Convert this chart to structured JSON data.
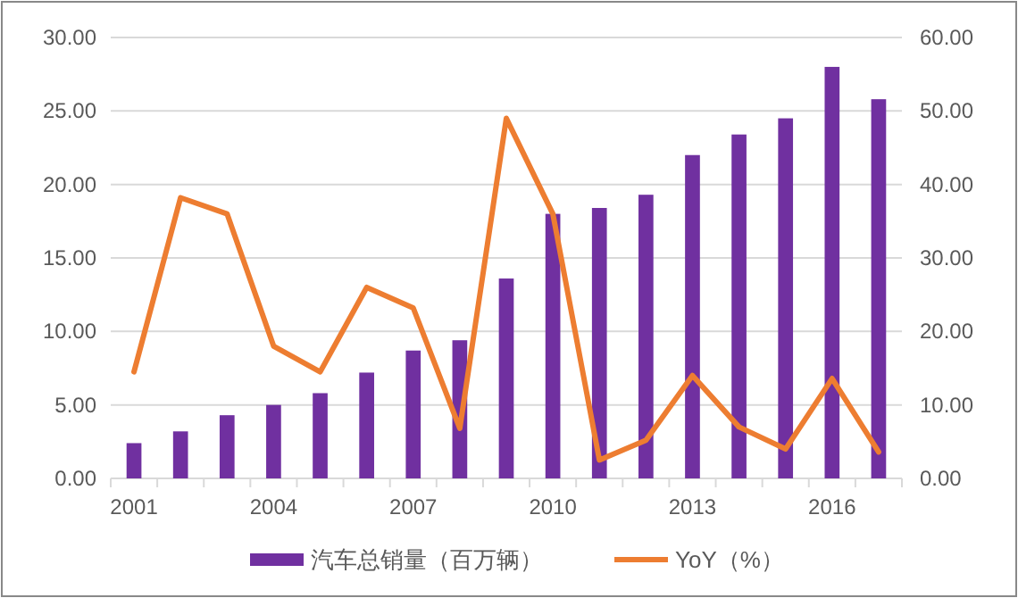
{
  "chart_data": {
    "type": "bar",
    "categories": [
      "2001",
      null,
      null,
      "2004",
      null,
      null,
      "2007",
      null,
      null,
      "2010",
      null,
      null,
      "2013",
      null,
      null,
      "2016",
      null
    ],
    "series": [
      {
        "name": "汽车总销量（百万辆）",
        "color": "#7030a0",
        "values": [
          2.4,
          3.2,
          4.3,
          5.0,
          5.8,
          7.2,
          8.7,
          9.4,
          13.6,
          18.0,
          18.4,
          19.3,
          22.0,
          23.4,
          24.5,
          28.0,
          25.8
        ]
      },
      {
        "name": "YoY（%）",
        "type": "line",
        "axis": "y2",
        "color": "#ed7d31",
        "values": [
          14.5,
          38.2,
          36,
          18,
          14.5,
          26,
          23.2,
          6.8,
          49,
          36,
          2.5,
          5.2,
          14,
          7,
          4,
          13.6,
          3.6
        ]
      }
    ],
    "ylim": [
      0,
      30
    ],
    "yticks": [
      {
        "value": 0,
        "label": "0.00"
      },
      {
        "value": 5,
        "label": "5.00"
      },
      {
        "value": 10,
        "label": "10.00"
      },
      {
        "value": 15,
        "label": "15.00"
      },
      {
        "value": 20,
        "label": "20.00"
      },
      {
        "value": 25,
        "label": "25.00"
      },
      {
        "value": 30,
        "label": "30.00"
      }
    ],
    "y2lim": [
      0,
      60
    ],
    "y2ticks": [
      {
        "value": 0,
        "label": "0.00"
      },
      {
        "value": 10,
        "label": "10.00"
      },
      {
        "value": 20,
        "label": "20.00"
      },
      {
        "value": 30,
        "label": "30.00"
      },
      {
        "value": 40,
        "label": "40.00"
      },
      {
        "value": 50,
        "label": "50.00"
      },
      {
        "value": 60,
        "label": "60.00"
      }
    ],
    "grid": "y",
    "legend": "bottom",
    "marker": "none",
    "line_style": "solid"
  }
}
